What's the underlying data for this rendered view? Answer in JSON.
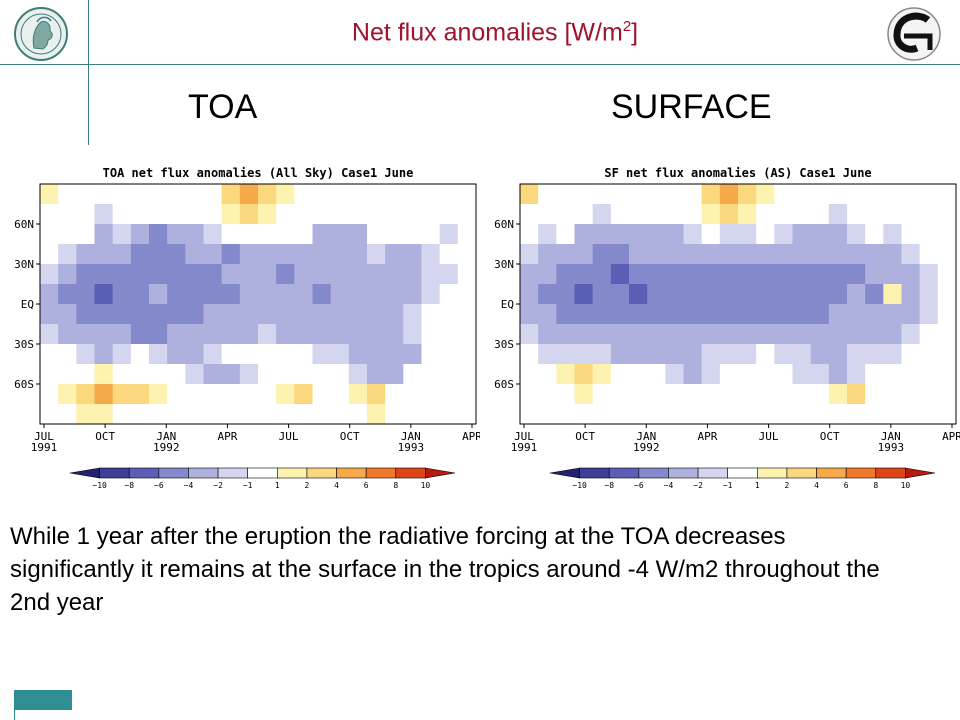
{
  "slide": {
    "title_main": "Net flux anomalies  [W/m",
    "title_sup": "2",
    "title_end": "]",
    "heading_left": "TOA",
    "heading_right": "SURFACE",
    "body": "While 1 year after the eruption the radiative forcing at the TOA decreases significantly it remains at the surface in the tropics around -4 W/m2 throughout the 2nd year"
  },
  "colors": {
    "title": "#a0122e",
    "accent_line": "#3a7e86",
    "footer_block": "#2e8e92"
  },
  "logos": [
    "max-planck-minerva-logo",
    "institute-logo"
  ],
  "chart_data": [
    {
      "type": "heatmap",
      "title": "TOA net flux anomalies (All Sky)   Case1 June",
      "x_ticks": [
        "JUL\n1991",
        "OCT",
        "JAN\n1992",
        "APR",
        "JUL",
        "OCT",
        "JAN\n1993",
        "APR"
      ],
      "y_ticks": [
        "60N",
        "30N",
        "EQ",
        "30S",
        "60S"
      ],
      "colorbar_levels": [
        -10,
        -8,
        -6,
        -4,
        -2,
        -1,
        1,
        2,
        4,
        6,
        8,
        10
      ],
      "colorbar_colors": [
        "#22246e",
        "#3b3f96",
        "#5a5fb5",
        "#8489cc",
        "#aeb1de",
        "#d4d6ef",
        "#ffffff",
        "#fdf2b0",
        "#fbd77e",
        "#f6a94a",
        "#ef7a2a",
        "#dd4418",
        "#b81a0e"
      ],
      "series": [
        {
          "values": [
            [
              2,
              0,
              0,
              0,
              0,
              1,
              0,
              0,
              0,
              0,
              3,
              5,
              4,
              2,
              0,
              0,
              0,
              0,
              0,
              0,
              0,
              0,
              0,
              0
            ],
            [
              1,
              0,
              0,
              -1,
              0,
              0,
              0,
              0,
              0,
              0,
              2,
              3,
              2,
              0,
              0,
              0,
              0,
              0,
              0,
              1,
              0,
              0,
              0,
              0
            ],
            [
              0,
              0,
              0,
              -2,
              -1,
              -3,
              -4,
              -3,
              -2,
              -1,
              0,
              0,
              1,
              0,
              0,
              -2,
              -3,
              -2,
              0,
              0,
              0,
              0,
              -1,
              0
            ],
            [
              0,
              -1,
              -2,
              -3,
              -3,
              -4,
              -4,
              -4,
              -3,
              -3,
              -4,
              -3,
              -3,
              -2,
              -2,
              -3,
              -3,
              -2,
              -1,
              -2,
              -2,
              -1,
              0,
              0
            ],
            [
              -1,
              -3,
              -4,
              -5,
              -4,
              -5,
              -4,
              -4,
              -4,
              -4,
              -3,
              -3,
              -3,
              -4,
              -3,
              -3,
              -2,
              -2,
              -2,
              -2,
              -2,
              -1,
              -1,
              0
            ],
            [
              -2,
              -4,
              -5,
              -6,
              -5,
              -4,
              -3,
              -4,
              -5,
              -4,
              -4,
              -3,
              -2,
              -2,
              -3,
              -4,
              -3,
              -2,
              -3,
              -2,
              -2,
              -1,
              0,
              0
            ],
            [
              -2,
              -3,
              -4,
              -5,
              -4,
              -4,
              -4,
              -4,
              -4,
              -3,
              -3,
              -3,
              -2,
              -2,
              -2,
              -2,
              -3,
              -3,
              -2,
              -2,
              -1,
              0,
              0,
              0
            ],
            [
              -1,
              -2,
              -3,
              -2,
              -3,
              -4,
              -4,
              -3,
              -3,
              -2,
              -2,
              -2,
              -1,
              -2,
              -2,
              -3,
              -3,
              -2,
              -3,
              -2,
              -1,
              0,
              0,
              0
            ],
            [
              0,
              0,
              -1,
              -2,
              -1,
              0,
              -1,
              -2,
              -2,
              -1,
              0,
              0,
              0,
              0,
              0,
              -1,
              -1,
              -2,
              -2,
              -3,
              -2,
              0,
              0,
              0
            ],
            [
              0,
              0,
              1,
              2,
              1,
              0,
              0,
              0,
              -1,
              -2,
              -2,
              -1,
              0,
              0,
              0,
              0,
              0,
              -1,
              -2,
              -2,
              0,
              0,
              0,
              0
            ],
            [
              0,
              2,
              4,
              5,
              4,
              3,
              2,
              1,
              0,
              0,
              0,
              0,
              0,
              2,
              3,
              1,
              0,
              2,
              3,
              1,
              0,
              0,
              0,
              0
            ],
            [
              0,
              1,
              2,
              2,
              1,
              0,
              0,
              0,
              0,
              0,
              0,
              1,
              0,
              0,
              0,
              0,
              0,
              1,
              2,
              0,
              0,
              0,
              0,
              0
            ]
          ]
        }
      ]
    },
    {
      "type": "heatmap",
      "title": "SF net flux anomalies (AS)   Case1 June",
      "x_ticks": [
        "JUL\n1991",
        "OCT",
        "JAN\n1992",
        "APR",
        "JUL",
        "OCT",
        "JAN\n1993",
        "APR"
      ],
      "y_ticks": [
        "60N",
        "30N",
        "EQ",
        "30S",
        "60S"
      ],
      "colorbar_levels": [
        -10,
        -8,
        -6,
        -4,
        -2,
        -1,
        1,
        2,
        4,
        6,
        8,
        10
      ],
      "colorbar_colors": [
        "#22246e",
        "#3b3f96",
        "#5a5fb5",
        "#8489cc",
        "#aeb1de",
        "#d4d6ef",
        "#ffffff",
        "#fdf2b0",
        "#fbd77e",
        "#f6a94a",
        "#ef7a2a",
        "#dd4418",
        "#b81a0e"
      ],
      "series": [
        {
          "values": [
            [
              3,
              1,
              0,
              0,
              0,
              0,
              0,
              0,
              0,
              0,
              3,
              5,
              4,
              2,
              0,
              0,
              0,
              0,
              0,
              1,
              0,
              0,
              0,
              0
            ],
            [
              1,
              0,
              0,
              0,
              -1,
              0,
              0,
              0,
              0,
              0,
              2,
              3,
              2,
              0,
              0,
              0,
              0,
              -1,
              0,
              0,
              0,
              0,
              0,
              0
            ],
            [
              0,
              -1,
              0,
              -2,
              -2,
              -2,
              -3,
              -2,
              -2,
              -1,
              0,
              -1,
              -1,
              0,
              -1,
              -2,
              -2,
              -2,
              -1,
              0,
              -1,
              0,
              0,
              0
            ],
            [
              -1,
              -2,
              -3,
              -3,
              -4,
              -4,
              -3,
              -3,
              -3,
              -3,
              -3,
              -3,
              -3,
              -3,
              -3,
              -3,
              -3,
              -3,
              -2,
              -2,
              -2,
              -1,
              0,
              0
            ],
            [
              -2,
              -3,
              -4,
              -5,
              -5,
              -6,
              -5,
              -5,
              -5,
              -4,
              -4,
              -4,
              -4,
              -5,
              -4,
              -4,
              -4,
              -4,
              -4,
              -3,
              -3,
              -2,
              -1,
              0
            ],
            [
              -2,
              -4,
              -5,
              -6,
              -5,
              -5,
              -6,
              -5,
              -5,
              -4,
              -4,
              -4,
              -4,
              -4,
              -4,
              -5,
              -4,
              -4,
              -3,
              -4,
              2,
              -3,
              -1,
              0
            ],
            [
              -2,
              -3,
              -4,
              -5,
              -5,
              -5,
              -5,
              -5,
              -4,
              -4,
              -4,
              -4,
              -4,
              -4,
              -4,
              -4,
              -4,
              -3,
              -3,
              -3,
              -3,
              -2,
              -1,
              0
            ],
            [
              -1,
              -2,
              -3,
              -3,
              -3,
              -3,
              -3,
              -3,
              -3,
              -3,
              -3,
              -2,
              -2,
              -2,
              -3,
              -3,
              -2,
              -2,
              -2,
              -2,
              -2,
              -1,
              0,
              0
            ],
            [
              0,
              -1,
              -1,
              -1,
              -1,
              -2,
              -2,
              -2,
              -2,
              -2,
              -1,
              -1,
              -1,
              0,
              -1,
              -1,
              -2,
              -2,
              -1,
              -1,
              -1,
              0,
              0,
              0
            ],
            [
              0,
              1,
              2,
              3,
              2,
              1,
              0,
              0,
              -1,
              -2,
              -1,
              0,
              0,
              0,
              0,
              -1,
              -1,
              -2,
              -1,
              0,
              0,
              0,
              0,
              0
            ],
            [
              0,
              0,
              1,
              2,
              1,
              0,
              0,
              0,
              0,
              0,
              0,
              0,
              0,
              0,
              0,
              0,
              0,
              2,
              3,
              1,
              0,
              0,
              0,
              0
            ],
            [
              0,
              0,
              0,
              0,
              0,
              0,
              0,
              0,
              0,
              0,
              0,
              0,
              0,
              0,
              0,
              0,
              0,
              0,
              1,
              0,
              0,
              0,
              0,
              0
            ]
          ]
        }
      ]
    }
  ]
}
